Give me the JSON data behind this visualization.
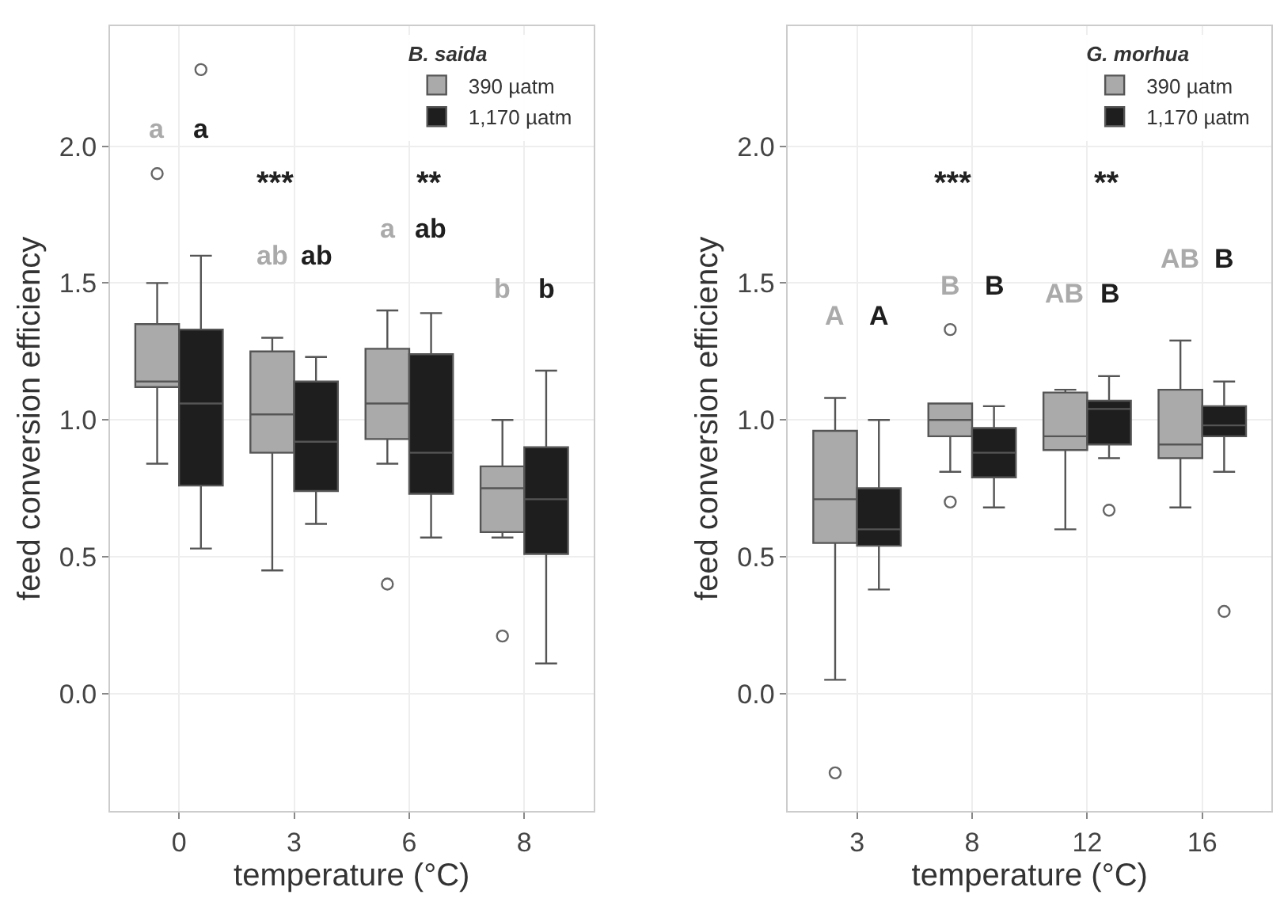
{
  "chart_data": [
    {
      "type": "box",
      "xlabel": "temperature (°C)",
      "ylabel": "feed conversion efficiency",
      "legend_title": "B. saida",
      "legend": "top right",
      "grid": true,
      "categories": [
        "0",
        "3",
        "6",
        "8"
      ],
      "ylim": [
        -0.43,
        2.44
      ],
      "yticks": [
        {
          "value": 0,
          "label": "0.0"
        },
        {
          "value": 0.5,
          "label": "0.5"
        },
        {
          "value": 1,
          "label": "1.0"
        },
        {
          "value": 1.5,
          "label": "1.5"
        },
        {
          "value": 2,
          "label": "2.0"
        }
      ],
      "series": [
        {
          "name": "390 µatm",
          "color": "#aaaaaa",
          "value_labels": [
            "a",
            "ab",
            "a",
            "b"
          ],
          "boxes": [
            {
              "low": 0.84,
              "q1": 1.12,
              "median": 1.14,
              "q3": 1.35,
              "high": 1.5,
              "outliers": [
                1.9
              ]
            },
            {
              "low": 0.45,
              "q1": 0.88,
              "median": 1.02,
              "q3": 1.25,
              "high": 1.3
            },
            {
              "low": 0.84,
              "q1": 0.93,
              "median": 1.06,
              "q3": 1.26,
              "high": 1.4,
              "outliers": [
                0.4
              ]
            },
            {
              "low": 0.57,
              "q1": 0.59,
              "median": 0.75,
              "q3": 0.83,
              "high": 1.0,
              "outliers": [
                0.21
              ]
            }
          ]
        },
        {
          "name": "1,170 µatm",
          "color": "#1e1e1e",
          "value_labels": [
            "a",
            "ab",
            "ab",
            "b"
          ],
          "boxes": [
            {
              "low": 0.53,
              "q1": 0.76,
              "median": 1.06,
              "q3": 1.33,
              "high": 1.6,
              "outliers": [
                2.28
              ]
            },
            {
              "low": 0.62,
              "q1": 0.74,
              "median": 0.92,
              "q3": 1.14,
              "high": 1.23
            },
            {
              "low": 0.57,
              "q1": 0.73,
              "median": 0.88,
              "q3": 1.24,
              "high": 1.39
            },
            {
              "low": 0.11,
              "q1": 0.51,
              "median": 0.71,
              "q3": 0.9,
              "high": 1.18
            }
          ]
        }
      ],
      "annotations": [
        "***",
        "**"
      ]
    },
    {
      "type": "box",
      "xlabel": "temperature (°C)",
      "ylabel": "feed conversion efficiency",
      "legend_title": "G. morhua",
      "legend": "top right",
      "grid": true,
      "categories": [
        "3",
        "8",
        "12",
        "16"
      ],
      "ylim": [
        -0.43,
        2.44
      ],
      "yticks": [
        {
          "value": 0,
          "label": "0.0"
        },
        {
          "value": 0.5,
          "label": "0.5"
        },
        {
          "value": 1,
          "label": "1.0"
        },
        {
          "value": 1.5,
          "label": "1.5"
        },
        {
          "value": 2,
          "label": "2.0"
        }
      ],
      "series": [
        {
          "name": "390 µatm",
          "color": "#aaaaaa",
          "value_labels": [
            "A",
            "B",
            "AB",
            "AB"
          ],
          "boxes": [
            {
              "low": 0.05,
              "q1": 0.55,
              "median": 0.71,
              "q3": 0.96,
              "high": 1.08,
              "outliers": [
                -0.29
              ]
            },
            {
              "low": 0.81,
              "q1": 0.94,
              "median": 1.0,
              "q3": 1.06,
              "high": 1.06,
              "outliers": [
                1.33,
                0.7
              ]
            },
            {
              "low": 0.6,
              "q1": 0.89,
              "median": 0.94,
              "q3": 1.1,
              "high": 1.11
            },
            {
              "low": 0.68,
              "q1": 0.86,
              "median": 0.91,
              "q3": 1.11,
              "high": 1.29
            }
          ]
        },
        {
          "name": "1,170 µatm",
          "color": "#1e1e1e",
          "value_labels": [
            "A",
            "B",
            "B",
            "B"
          ],
          "boxes": [
            {
              "low": 0.38,
              "q1": 0.54,
              "median": 0.6,
              "q3": 0.75,
              "high": 1.0
            },
            {
              "low": 0.68,
              "q1": 0.79,
              "median": 0.88,
              "q3": 0.97,
              "high": 1.05
            },
            {
              "low": 0.86,
              "q1": 0.91,
              "median": 1.04,
              "q3": 1.07,
              "high": 1.16,
              "outliers": [
                0.67
              ]
            },
            {
              "low": 0.81,
              "q1": 0.94,
              "median": 0.98,
              "q3": 1.05,
              "high": 1.14,
              "outliers": [
                0.3
              ]
            }
          ]
        }
      ],
      "annotations": [
        "***",
        "**"
      ]
    }
  ]
}
